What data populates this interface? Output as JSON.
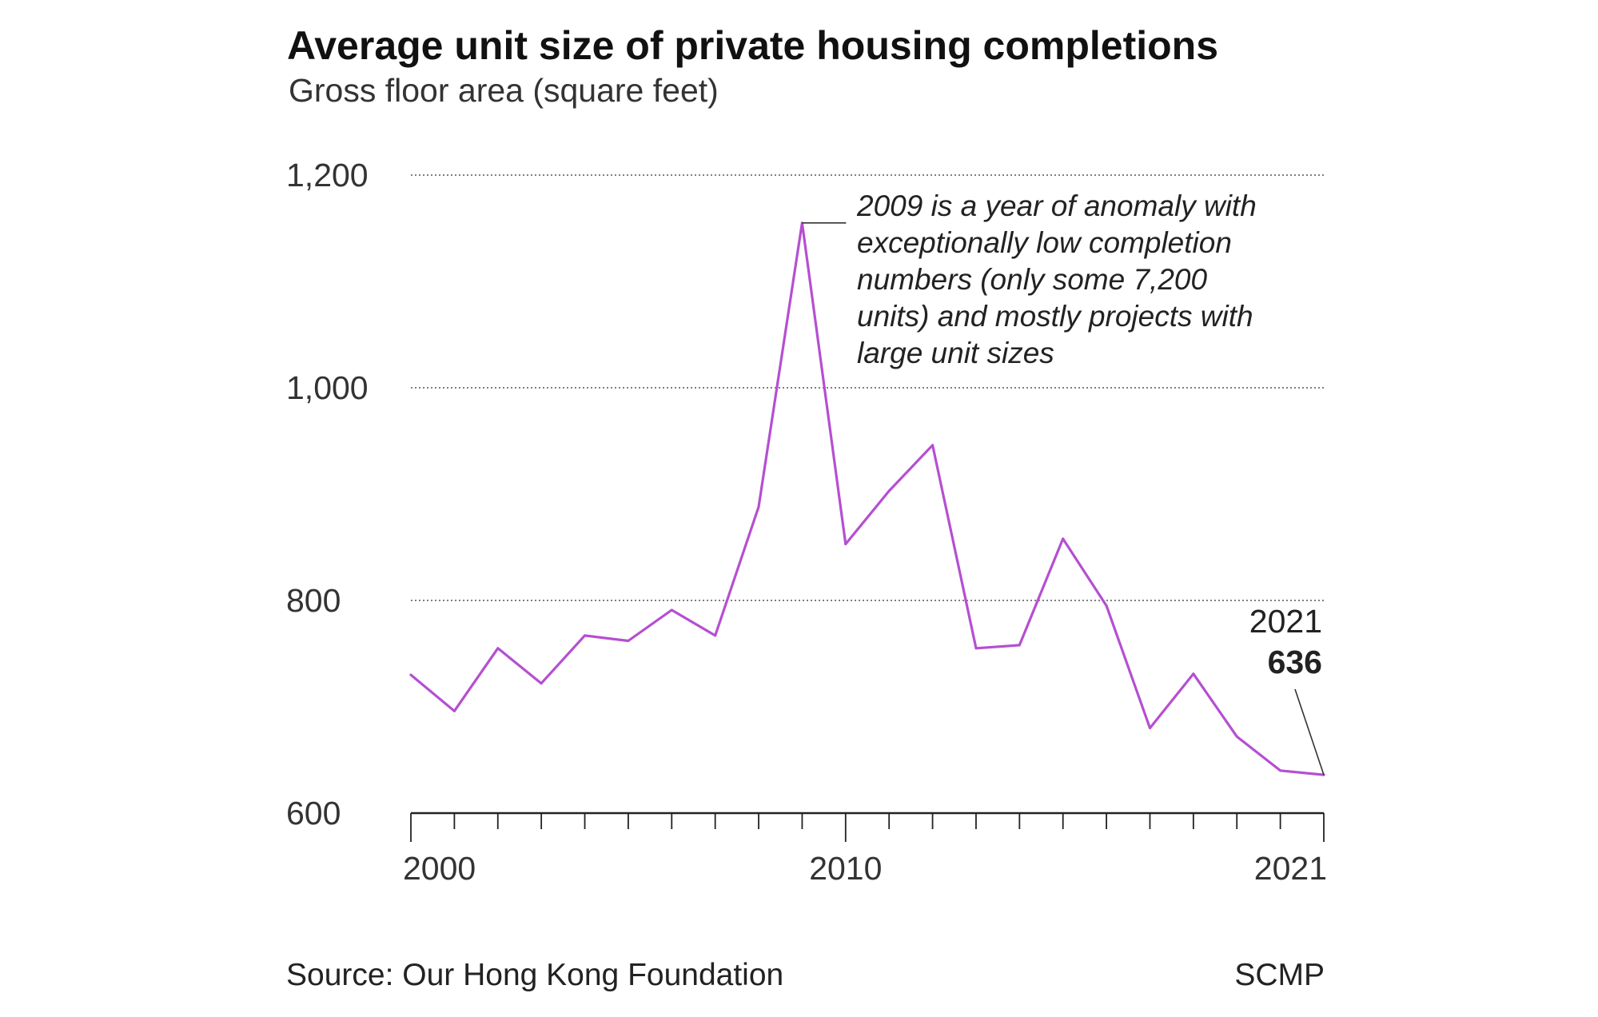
{
  "header": {
    "title": "Average unit size of private housing completions",
    "subtitle": "Gross floor area (square feet)"
  },
  "footer": {
    "source": "Source: Our Hong Kong Foundation",
    "credit": "SCMP"
  },
  "annotations": {
    "anomaly_lines": [
      "2009 is a year of anomaly with",
      "exceptionally low completion",
      "numbers (only some 7,200",
      "units) and mostly projects with",
      "large unit sizes"
    ],
    "last_year": "2021",
    "last_value": "636"
  },
  "colors": {
    "line": "#b54fd1",
    "axis": "#222222",
    "grid": "#555555"
  },
  "chart_data": {
    "type": "line",
    "title": "Average unit size of private housing completions",
    "subtitle": "Gross floor area (square feet)",
    "xlabel": "",
    "ylabel": "",
    "x": [
      2000,
      2001,
      2002,
      2003,
      2004,
      2005,
      2006,
      2007,
      2008,
      2009,
      2010,
      2011,
      2012,
      2013,
      2014,
      2015,
      2016,
      2017,
      2018,
      2019,
      2020,
      2021
    ],
    "series": [
      {
        "name": "",
        "values": [
          730,
          696,
          755,
          722,
          767,
          762,
          791,
          767,
          888,
          1155,
          853,
          903,
          946,
          755,
          758,
          858,
          795,
          680,
          731,
          672,
          640,
          636
        ]
      }
    ],
    "ylim": [
      600,
      1200
    ],
    "xlim": [
      2000,
      2021
    ],
    "yticks": [
      600,
      800,
      1000,
      1200
    ],
    "ytick_labels": [
      "600",
      "800",
      "1,000",
      "1,200"
    ],
    "xtick_labels": [
      {
        "value": 2000,
        "label": "2000"
      },
      {
        "value": 2010,
        "label": "2010"
      },
      {
        "value": 2021,
        "label": "2021"
      }
    ],
    "grid": "horizontal dotted",
    "legend": "none"
  }
}
